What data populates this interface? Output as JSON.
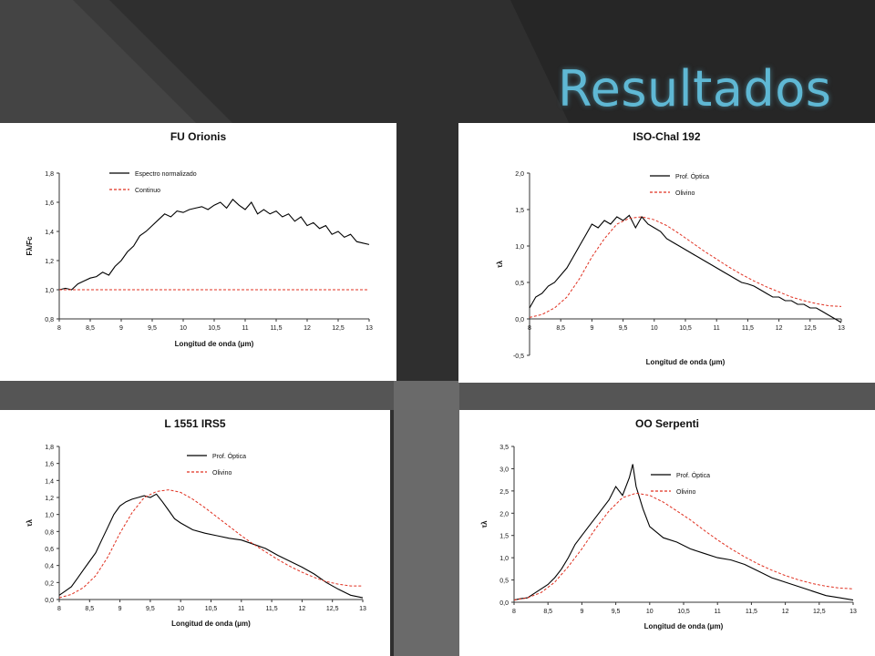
{
  "slide": {
    "title": "Resultados",
    "title_color": "#5fb8d4",
    "background_color": "#2f2f2f"
  },
  "chart_data": [
    {
      "type": "line",
      "title": "FU Orionis",
      "xlabel": "Longitud de onda (μm)",
      "ylabel": "Fλ/Fc",
      "xlim": [
        8,
        13
      ],
      "ylim": [
        0.8,
        1.8
      ],
      "x_ticks": [
        "8",
        "8,5",
        "9",
        "9,5",
        "10",
        "10,5",
        "11",
        "11,5",
        "12",
        "12,5",
        "13"
      ],
      "y_ticks": [
        "0,8",
        "1,0",
        "1,2",
        "1,4",
        "1,6",
        "1,8"
      ],
      "legend_placement": "top-left",
      "series": [
        {
          "name": "Espectro normalizado",
          "color": "#000000",
          "style": "solid",
          "x": [
            8.0,
            8.1,
            8.2,
            8.3,
            8.4,
            8.5,
            8.6,
            8.7,
            8.8,
            8.9,
            9.0,
            9.1,
            9.2,
            9.3,
            9.4,
            9.5,
            9.6,
            9.7,
            9.8,
            9.9,
            10.0,
            10.1,
            10.2,
            10.3,
            10.4,
            10.5,
            10.6,
            10.7,
            10.8,
            10.9,
            11.0,
            11.1,
            11.2,
            11.3,
            11.4,
            11.5,
            11.6,
            11.7,
            11.8,
            11.9,
            12.0,
            12.1,
            12.2,
            12.3,
            12.4,
            12.5,
            12.6,
            12.7,
            12.8,
            12.9,
            13.0
          ],
          "y": [
            1.0,
            1.01,
            1.0,
            1.04,
            1.06,
            1.08,
            1.09,
            1.12,
            1.1,
            1.16,
            1.2,
            1.26,
            1.3,
            1.37,
            1.4,
            1.44,
            1.48,
            1.52,
            1.5,
            1.54,
            1.53,
            1.55,
            1.56,
            1.57,
            1.55,
            1.58,
            1.6,
            1.56,
            1.62,
            1.58,
            1.55,
            1.6,
            1.52,
            1.55,
            1.52,
            1.54,
            1.5,
            1.52,
            1.47,
            1.5,
            1.44,
            1.46,
            1.42,
            1.44,
            1.38,
            1.4,
            1.36,
            1.38,
            1.33,
            1.32,
            1.31
          ]
        },
        {
          "name": "Continuo",
          "color": "#e03020",
          "style": "dashed",
          "x": [
            8.0,
            13.0
          ],
          "y": [
            1.0,
            1.0
          ]
        }
      ]
    },
    {
      "type": "line",
      "title": "ISO-Chal 192",
      "xlabel": "Longitud de onda (μm)",
      "ylabel": "τλ",
      "xlim": [
        8,
        13
      ],
      "ylim": [
        -0.5,
        2.0
      ],
      "x_ticks": [
        "8",
        "8,5",
        "9",
        "9,5",
        "10",
        "10,5",
        "11",
        "11,5",
        "12",
        "12,5",
        "13"
      ],
      "y_ticks": [
        "-0,5",
        "0,0",
        "0,5",
        "1,0",
        "1,5",
        "2,0"
      ],
      "legend_placement": "top-left",
      "series": [
        {
          "name": "Prof. Óptica",
          "color": "#000000",
          "style": "solid",
          "x": [
            8.0,
            8.1,
            8.2,
            8.3,
            8.4,
            8.5,
            8.6,
            8.7,
            8.8,
            8.9,
            9.0,
            9.1,
            9.2,
            9.3,
            9.4,
            9.5,
            9.6,
            9.7,
            9.8,
            9.9,
            10.0,
            10.1,
            10.2,
            10.3,
            10.4,
            10.5,
            10.6,
            10.7,
            10.8,
            10.9,
            11.0,
            11.1,
            11.2,
            11.3,
            11.4,
            11.5,
            11.6,
            11.7,
            11.8,
            11.9,
            12.0,
            12.1,
            12.2,
            12.3,
            12.4,
            12.5,
            12.6,
            12.7,
            12.8,
            12.9,
            13.0
          ],
          "y": [
            0.15,
            0.3,
            0.35,
            0.45,
            0.5,
            0.6,
            0.7,
            0.85,
            1.0,
            1.15,
            1.3,
            1.25,
            1.35,
            1.3,
            1.4,
            1.35,
            1.42,
            1.25,
            1.4,
            1.3,
            1.25,
            1.2,
            1.1,
            1.05,
            1.0,
            0.95,
            0.9,
            0.85,
            0.8,
            0.75,
            0.7,
            0.65,
            0.6,
            0.55,
            0.5,
            0.48,
            0.45,
            0.4,
            0.35,
            0.3,
            0.3,
            0.25,
            0.25,
            0.2,
            0.2,
            0.15,
            0.15,
            0.1,
            0.05,
            0.0,
            -0.05
          ]
        },
        {
          "name": "Olivino",
          "color": "#e03020",
          "style": "dashed",
          "x": [
            8.0,
            8.2,
            8.4,
            8.6,
            8.8,
            9.0,
            9.2,
            9.4,
            9.6,
            9.8,
            10.0,
            10.2,
            10.4,
            10.6,
            10.8,
            11.0,
            11.2,
            11.4,
            11.6,
            11.8,
            12.0,
            12.2,
            12.4,
            12.6,
            12.8,
            13.0
          ],
          "y": [
            0.02,
            0.06,
            0.15,
            0.3,
            0.55,
            0.85,
            1.1,
            1.3,
            1.38,
            1.4,
            1.36,
            1.28,
            1.17,
            1.05,
            0.93,
            0.82,
            0.71,
            0.61,
            0.52,
            0.44,
            0.37,
            0.3,
            0.25,
            0.21,
            0.18,
            0.17
          ]
        }
      ]
    },
    {
      "type": "line",
      "title": "L 1551 IRS5",
      "xlabel": "Longitud de onda (μm)",
      "ylabel": "τλ",
      "xlim": [
        8,
        13
      ],
      "ylim": [
        0.0,
        1.8
      ],
      "x_ticks": [
        "8",
        "8,5",
        "9",
        "9,5",
        "10",
        "10,5",
        "11",
        "11,5",
        "12",
        "12,5",
        "13"
      ],
      "y_ticks": [
        "0,0",
        "0,2",
        "0,4",
        "0,6",
        "0,8",
        "1,0",
        "1,2",
        "1,4",
        "1,6",
        "1,8"
      ],
      "legend_placement": "top-right",
      "series": [
        {
          "name": "Prof. Óptica",
          "color": "#000000",
          "style": "solid",
          "x": [
            8.0,
            8.1,
            8.2,
            8.3,
            8.4,
            8.5,
            8.6,
            8.7,
            8.8,
            8.9,
            9.0,
            9.1,
            9.2,
            9.3,
            9.4,
            9.5,
            9.6,
            9.7,
            9.8,
            9.9,
            10.0,
            10.2,
            10.4,
            10.6,
            10.8,
            11.0,
            11.2,
            11.4,
            11.6,
            11.8,
            12.0,
            12.2,
            12.4,
            12.6,
            12.8,
            13.0
          ],
          "y": [
            0.05,
            0.1,
            0.15,
            0.25,
            0.35,
            0.45,
            0.55,
            0.7,
            0.85,
            1.0,
            1.1,
            1.15,
            1.18,
            1.2,
            1.22,
            1.2,
            1.24,
            1.15,
            1.05,
            0.95,
            0.9,
            0.82,
            0.78,
            0.75,
            0.72,
            0.7,
            0.65,
            0.6,
            0.52,
            0.45,
            0.38,
            0.3,
            0.2,
            0.12,
            0.05,
            0.02
          ]
        },
        {
          "name": "Olivino",
          "color": "#e03020",
          "style": "dashed",
          "x": [
            8.0,
            8.2,
            8.4,
            8.6,
            8.8,
            9.0,
            9.2,
            9.4,
            9.6,
            9.8,
            10.0,
            10.2,
            10.4,
            10.6,
            10.8,
            11.0,
            11.2,
            11.4,
            11.6,
            11.8,
            12.0,
            12.2,
            12.4,
            12.6,
            12.8,
            13.0
          ],
          "y": [
            0.02,
            0.06,
            0.14,
            0.28,
            0.5,
            0.78,
            1.02,
            1.2,
            1.27,
            1.29,
            1.26,
            1.18,
            1.08,
            0.97,
            0.86,
            0.75,
            0.65,
            0.56,
            0.47,
            0.39,
            0.32,
            0.26,
            0.21,
            0.18,
            0.16,
            0.16
          ]
        }
      ]
    },
    {
      "type": "line",
      "title": "OO Serpenti",
      "xlabel": "Longitud de onda (μm)",
      "ylabel": "τλ",
      "xlim": [
        8,
        13
      ],
      "ylim": [
        0.0,
        3.5
      ],
      "x_ticks": [
        "8",
        "8,5",
        "9",
        "9,5",
        "10",
        "10,5",
        "11",
        "11,5",
        "12",
        "12,5",
        "13"
      ],
      "y_ticks": [
        "0,0",
        "0,5",
        "1,0",
        "1,5",
        "2,0",
        "2,5",
        "3,0",
        "3,5"
      ],
      "legend_placement": "top-right",
      "series": [
        {
          "name": "Prof. Óptica",
          "color": "#000000",
          "style": "solid",
          "x": [
            8.0,
            8.1,
            8.2,
            8.3,
            8.4,
            8.5,
            8.6,
            8.7,
            8.8,
            8.9,
            9.0,
            9.1,
            9.2,
            9.3,
            9.4,
            9.5,
            9.6,
            9.7,
            9.75,
            9.8,
            9.9,
            10.0,
            10.2,
            10.4,
            10.6,
            10.8,
            11.0,
            11.2,
            11.4,
            11.6,
            11.8,
            12.0,
            12.2,
            12.4,
            12.6,
            12.8,
            13.0
          ],
          "y": [
            0.05,
            0.08,
            0.1,
            0.2,
            0.3,
            0.4,
            0.55,
            0.75,
            1.0,
            1.3,
            1.5,
            1.7,
            1.9,
            2.1,
            2.3,
            2.6,
            2.4,
            2.8,
            3.1,
            2.6,
            2.1,
            1.7,
            1.45,
            1.35,
            1.2,
            1.1,
            1.0,
            0.95,
            0.85,
            0.7,
            0.55,
            0.45,
            0.35,
            0.25,
            0.15,
            0.1,
            0.05
          ]
        },
        {
          "name": "Olivino",
          "color": "#e03020",
          "style": "dashed",
          "x": [
            8.0,
            8.2,
            8.4,
            8.6,
            8.8,
            9.0,
            9.2,
            9.4,
            9.6,
            9.8,
            10.0,
            10.2,
            10.4,
            10.6,
            10.8,
            11.0,
            11.2,
            11.4,
            11.6,
            11.8,
            12.0,
            12.2,
            12.4,
            12.6,
            12.8,
            13.0
          ],
          "y": [
            0.05,
            0.1,
            0.22,
            0.45,
            0.8,
            1.2,
            1.65,
            2.05,
            2.35,
            2.45,
            2.4,
            2.25,
            2.05,
            1.85,
            1.62,
            1.4,
            1.2,
            1.02,
            0.86,
            0.72,
            0.6,
            0.5,
            0.42,
            0.36,
            0.32,
            0.3
          ]
        }
      ]
    }
  ]
}
